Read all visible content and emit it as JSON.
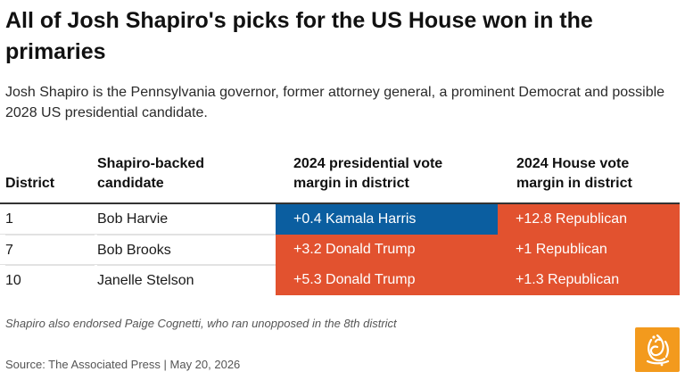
{
  "title": "All of Josh Shapiro's picks for the US House won in the primaries",
  "subtitle": "Josh Shapiro is the Pennsylvania governor, former attorney general, a prominent Democrat and possible 2028 US presidential candidate.",
  "table": {
    "headers": [
      "District",
      "Shapiro-backed candidate",
      "2024 presidential vote margin in district",
      "2024 House vote margin in district"
    ],
    "rows": [
      {
        "district": "1",
        "candidate": "Bob Harvie",
        "presidential_margin": "+0.4 Kamala Harris",
        "presidential_color": "#0b5ea0",
        "house_margin": "+12.8 Republican",
        "house_color": "#e2522f"
      },
      {
        "district": "7",
        "candidate": "Bob Brooks",
        "presidential_margin": "+3.2 Donald Trump",
        "presidential_color": "#e2522f",
        "house_margin": "+1 Republican",
        "house_color": "#e2522f"
      },
      {
        "district": "10",
        "candidate": "Janelle Stelson",
        "presidential_margin": "+5.3 Donald Trump",
        "presidential_color": "#e2522f",
        "house_margin": "+1.3 Republican",
        "house_color": "#e2522f"
      }
    ]
  },
  "footnote": "Shapiro also endorsed Paige Cognetti, who ran unopposed in the 8th district",
  "source": "Source: The Associated Press | May 20, 2026",
  "logo": {
    "icon": "al-jazeera-logo-icon",
    "color": "#f39a1d"
  }
}
